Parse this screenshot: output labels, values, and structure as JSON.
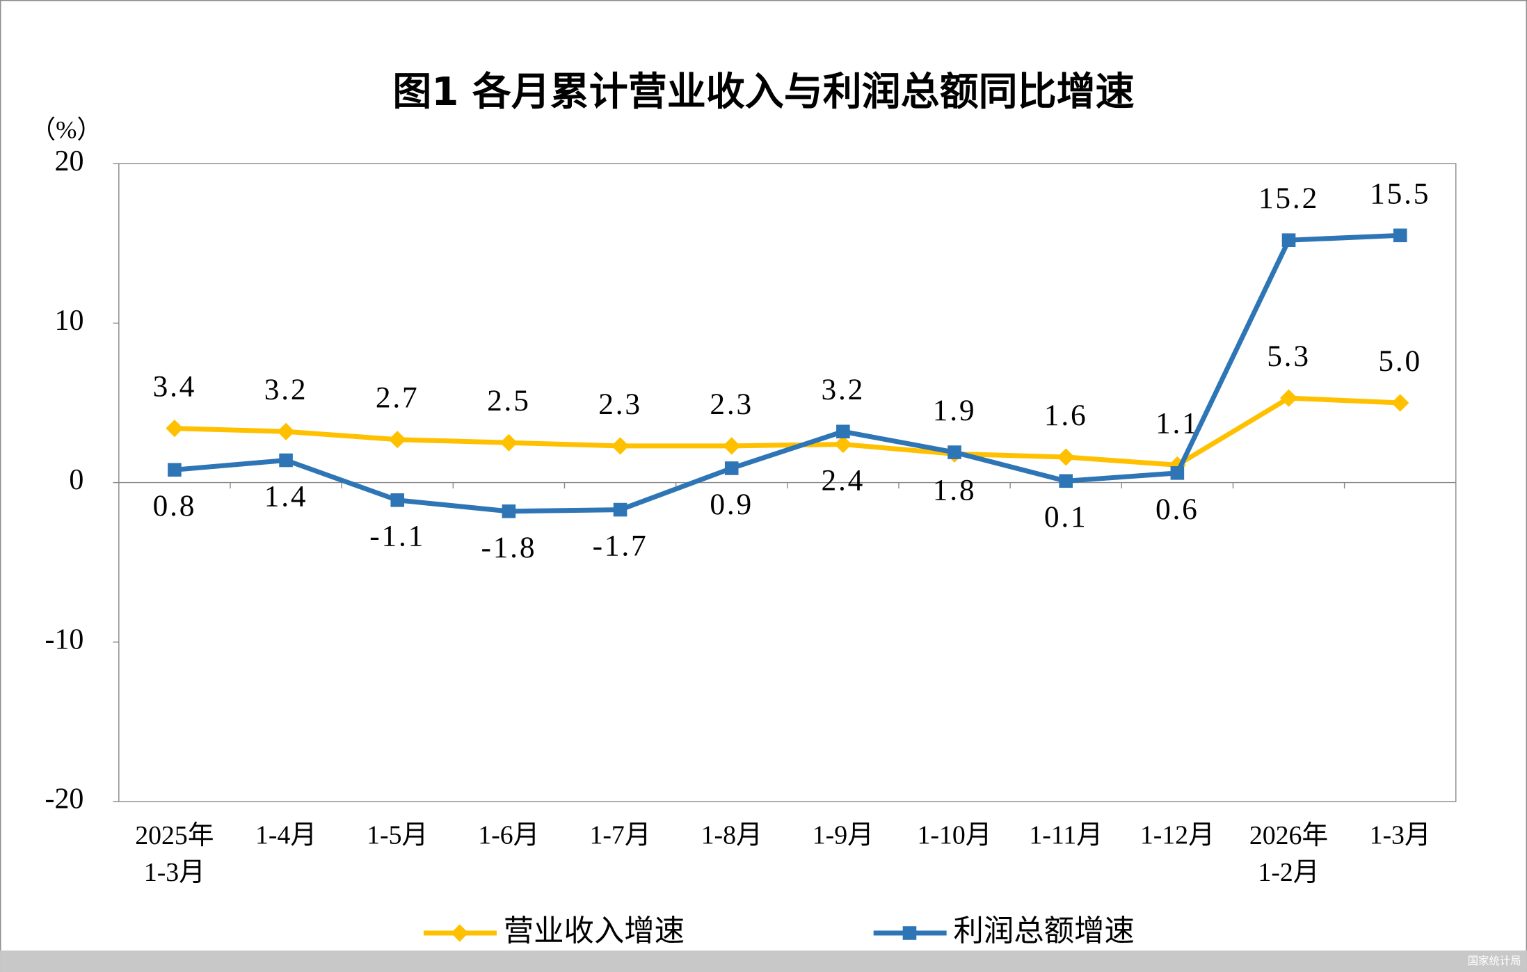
{
  "chart_data": {
    "type": "line",
    "title": "图1  各月累计营业收入与利润总额同比增速",
    "y_unit": "（%）",
    "categories": [
      "2025年\n1-3月",
      "1-4月",
      "1-5月",
      "1-6月",
      "1-7月",
      "1-8月",
      "1-9月",
      "1-10月",
      "1-11月",
      "1-12月",
      "2026年\n1-2月",
      "1-3月"
    ],
    "series": [
      {
        "name": "营业收入增速",
        "color": "#FFC000",
        "marker": "diamond",
        "values": [
          3.4,
          3.2,
          2.7,
          2.5,
          2.3,
          2.3,
          2.4,
          1.8,
          1.6,
          1.1,
          5.3,
          5.0
        ],
        "value_labels": [
          "3.4",
          "3.2",
          "2.7",
          "2.5",
          "2.3",
          "2.3",
          "2.4",
          "1.8",
          "1.6",
          "1.1",
          "5.3",
          "5.0"
        ]
      },
      {
        "name": "利润总额增速",
        "color": "#2E75B6",
        "marker": "square",
        "values": [
          0.8,
          1.4,
          -1.1,
          -1.8,
          -1.7,
          0.9,
          3.2,
          1.9,
          0.1,
          0.6,
          15.2,
          15.5
        ]
      }
    ],
    "ylim": [
      -20,
      20
    ],
    "yticks": [
      -20,
      -10,
      0,
      10,
      20
    ],
    "legend": "bottom",
    "source": "国家统计局"
  }
}
